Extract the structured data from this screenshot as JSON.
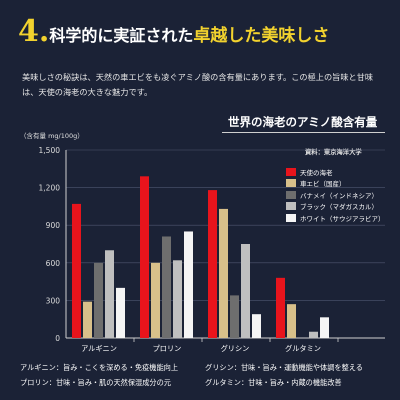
{
  "heading": {
    "number": "4.",
    "part1": "科学的に実証された",
    "part2": "卓越した美味しさ"
  },
  "lead_text": "美味しさの秘訣は、天然の車エビをも凌ぐアミノ酸の含有量にあります。この極上の旨味と甘味は、天使の海老の大きな魅力です。",
  "colors": {
    "background": "#1b2236",
    "accent": "#f2d22e"
  },
  "chart_data": {
    "type": "bar",
    "title": "世界の海老のアミノ酸含有量",
    "ylabel": "（含有量 mg/100g）",
    "source": "資料：東京海洋大学",
    "categories": [
      "アルギニン",
      "プロリン",
      "グリシン",
      "グルタミン"
    ],
    "ylim": [
      0,
      1500
    ],
    "y_ticks": [
      0,
      300,
      600,
      900,
      1200,
      1500
    ],
    "y_tick_labels": [
      "0",
      "300",
      "600",
      "900",
      "1,200",
      "1,500"
    ],
    "grid": true,
    "legend_position": "top-right",
    "series": [
      {
        "name": "天使の海老",
        "color": "#e8141c",
        "values": [
          1070,
          1290,
          1180,
          480
        ]
      },
      {
        "name": "車エビ（国産）",
        "color": "#d8c08a",
        "values": [
          290,
          600,
          1030,
          270
        ]
      },
      {
        "name": "バナメイ（インドネシア）",
        "color": "#6e6e6e",
        "values": [
          600,
          810,
          340,
          null
        ]
      },
      {
        "name": "ブラック（マダガスカル）",
        "color": "#bfbfbf",
        "values": [
          700,
          620,
          750,
          50
        ]
      },
      {
        "name": "ホワイト（サウジアラビア）",
        "color": "#f5f5f5",
        "values": [
          400,
          850,
          190,
          165
        ]
      }
    ]
  },
  "notes": [
    "アルギニン：旨み・こくを深める・免疫機能向上",
    "グリシン：甘味・旨み・運動機能や体調を整える",
    "プロリン：甘味・旨み・肌の天然保湿成分の元",
    "グルタミン：甘味・旨み・内蔵の機能改善"
  ]
}
